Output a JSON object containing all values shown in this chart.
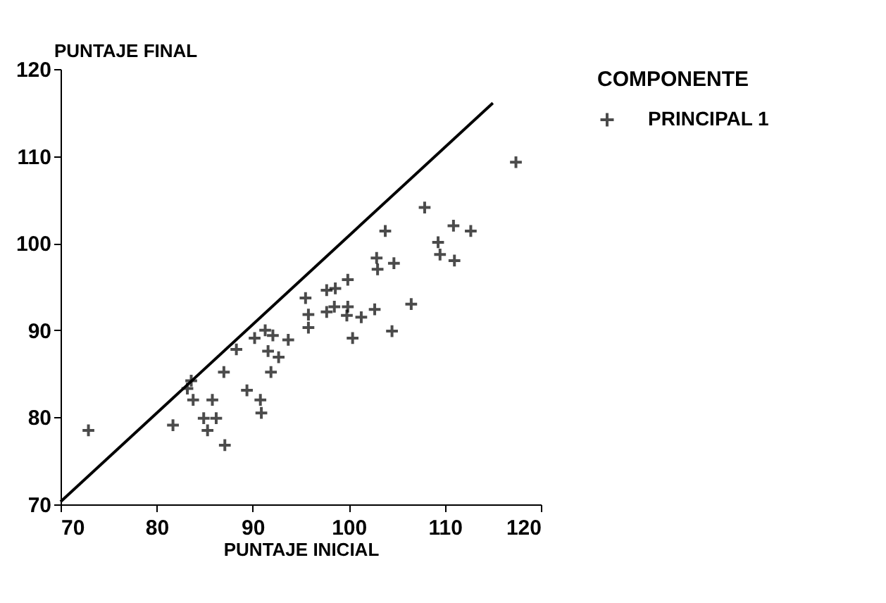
{
  "chart_data": {
    "type": "scatter",
    "xlabel": "PUNTAJE INICIAL",
    "ylabel": "PUNTAJE FINAL",
    "legend_title": "COMPONENTE",
    "xlim": [
      70,
      120
    ],
    "xticks": [
      70,
      80,
      90,
      100,
      110,
      120
    ],
    "ylim": [
      70,
      120
    ],
    "yticks": [
      70,
      80,
      90,
      100,
      110,
      120
    ],
    "grid": false,
    "legend": "top right",
    "series": [
      {
        "name": "PRINCIPAL 1",
        "color": "#000000",
        "marker": "cross",
        "x": [
          72.9,
          81.7,
          83.2,
          83.6,
          83.8,
          85.8,
          84.9,
          86.2,
          85.3,
          87.1,
          87.0,
          88.3,
          89.4,
          90.2,
          90.8,
          90.9,
          91.3,
          91.6,
          91.9,
          92.1,
          92.7,
          93.7,
          95.5,
          95.8,
          95.8,
          97.7,
          98.6,
          97.7,
          98.5,
          99.9,
          99.9,
          99.8,
          100.4,
          101.3,
          102.7,
          102.9,
          103.0,
          103.8,
          104.7,
          104.5,
          106.5,
          107.9,
          109.3,
          109.5,
          110.9,
          111.0,
          112.7,
          117.4
        ],
        "values": [
          78.5,
          79.1,
          83.3,
          84.2,
          82.0,
          82.0,
          79.9,
          79.9,
          78.5,
          76.8,
          85.2,
          87.8,
          83.1,
          89.1,
          82.0,
          80.5,
          90.0,
          87.6,
          85.2,
          89.4,
          86.9,
          88.9,
          93.7,
          91.8,
          90.3,
          94.6,
          94.8,
          92.1,
          92.7,
          95.8,
          92.7,
          91.7,
          89.1,
          91.5,
          92.4,
          98.3,
          97.0,
          101.4,
          97.7,
          89.9,
          93.0,
          104.1,
          100.1,
          98.7,
          102.0,
          98.0,
          101.4,
          109.3
        ]
      },
      {
        "color": "#000000",
        "type": "line",
        "line_style": "solid",
        "marker": "none",
        "x": [
          70,
          115
        ],
        "values": [
          70.3,
          116.1
        ]
      }
    ]
  }
}
